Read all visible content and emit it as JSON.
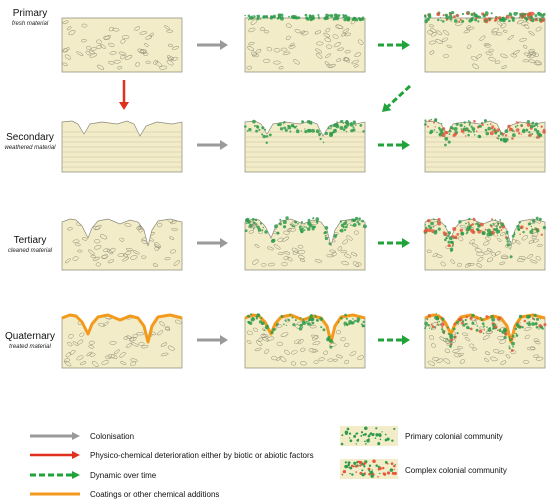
{
  "rows": [
    {
      "title": "Primary",
      "subtitle": "fresh material"
    },
    {
      "title": "Secondary",
      "subtitle": "weathered material"
    },
    {
      "title": "Tertiary",
      "subtitle": "cleaned material"
    },
    {
      "title": "Quaternary",
      "subtitle": "treated material"
    }
  ],
  "legend": {
    "colonisation": "Colonisation",
    "deterioration": "Physico-chemical deterioration either by biotic or abiotic factors",
    "dynamic": "Dynamic over time",
    "coatings": "Coatings or other chemical additions",
    "primary_community": "Primary colonial community",
    "complex_community": "Complex colonial community"
  },
  "colors": {
    "stone_fill": "#f2ecc8",
    "stone_stroke": "#8c8a7a",
    "arrow_grey": "#9a9a9a",
    "arrow_red": "#e0301e",
    "arrow_green": "#1fa33a",
    "coating": "#f39a1d",
    "colony_green": "#2e9c4a",
    "colony_red": "#e2583a"
  }
}
